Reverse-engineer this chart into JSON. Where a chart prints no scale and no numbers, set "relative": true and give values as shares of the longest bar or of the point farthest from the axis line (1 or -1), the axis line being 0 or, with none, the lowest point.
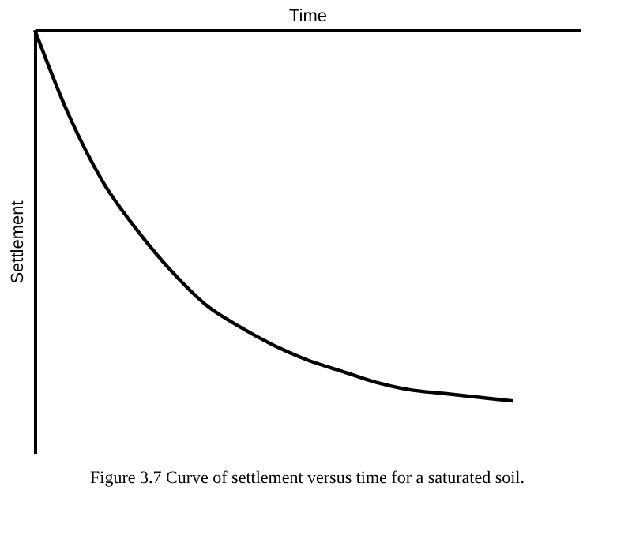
{
  "chart_data": {
    "type": "line",
    "relative": true,
    "xlabel": "Time",
    "ylabel": "Settlement",
    "categories": [
      null,
      null,
      null,
      null,
      null,
      null,
      null,
      null,
      null,
      null,
      null,
      null,
      null,
      null,
      null
    ],
    "series": [
      {
        "color": "#000000",
        "values": [
          0,
          -0.23,
          -0.41,
          -0.54,
          -0.65,
          -0.74,
          -0.8,
          -0.85,
          -0.89,
          -0.92,
          -0.95,
          -0.97,
          -0.98,
          -0.99,
          -1
        ]
      }
    ],
    "grid": false,
    "marker": "none",
    "line_style": "solid",
    "annotations": [
      "Figure 3.7    Curve of settlement versus time for a saturated soil."
    ]
  }
}
